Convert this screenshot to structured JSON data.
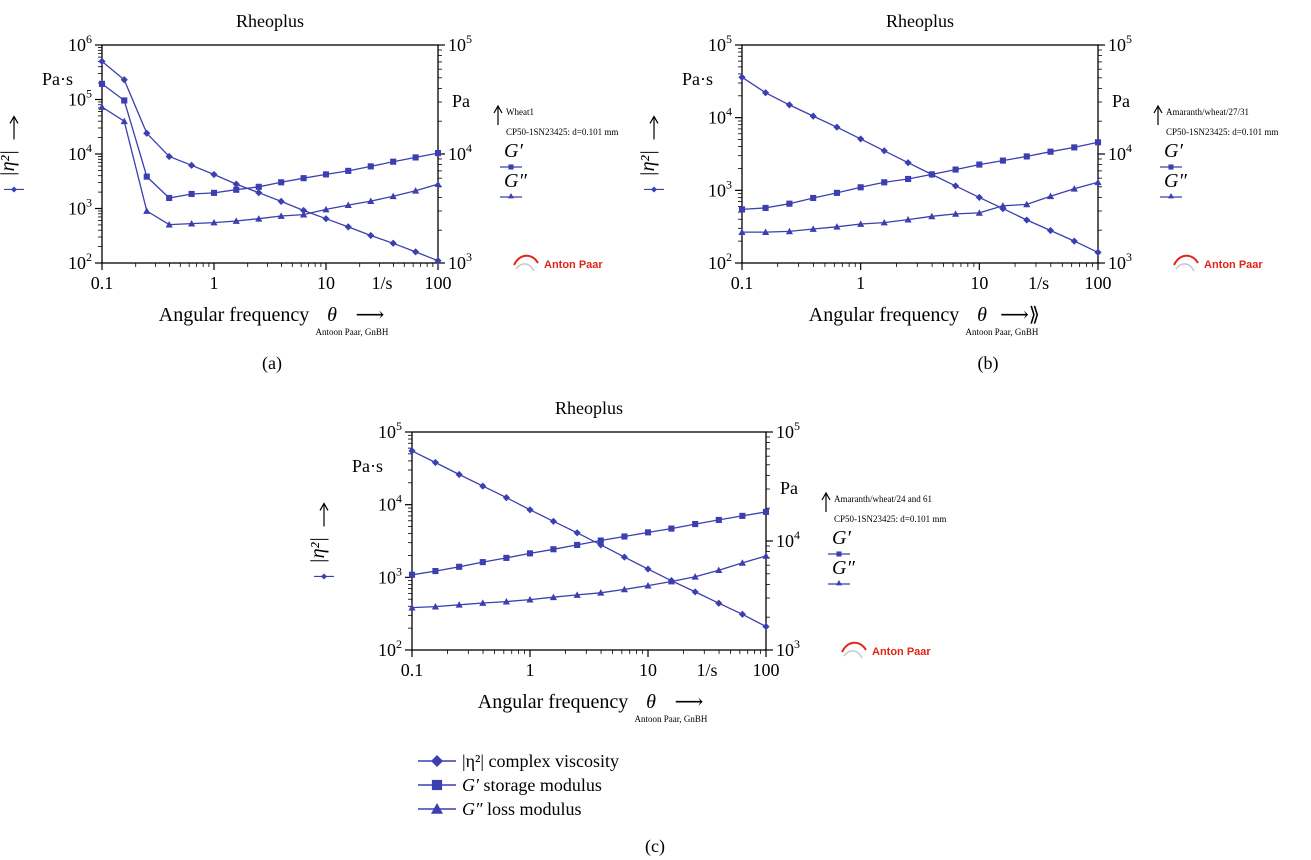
{
  "colors": {
    "series": "#3b3fb0",
    "axis": "#000000",
    "logo": "#e0251b"
  },
  "chart_data": [
    {
      "type": "line",
      "panel_label": "(a)",
      "title": "Rheoplus",
      "xlabel": "Angular frequency",
      "x_symbol": "θ",
      "x_arrow": "⟶",
      "x_note": "Antoon Paar, GnBH",
      "x_scale": "log",
      "xlim": [
        0.1,
        100
      ],
      "x_ticks": [
        "0.1",
        "1",
        "10",
        "1/s",
        "100"
      ],
      "x_tick_values": [
        0.1,
        1,
        10,
        31.6,
        100
      ],
      "y_left": {
        "scale": "log",
        "lim": [
          100,
          1000000
        ],
        "tick_exps": [
          2,
          3,
          4,
          5,
          6
        ],
        "unit": "Pa·s",
        "label": "|η²|"
      },
      "y_right": {
        "scale": "log",
        "lim": [
          1000,
          100000
        ],
        "tick_exps": [
          3,
          4,
          5
        ],
        "unit": "Pa",
        "labels": [
          "G′",
          "G″"
        ]
      },
      "sample_note": "Wheat1",
      "instrument_note": "CP50-1SN23425: d=0.101 mm",
      "logo_text": "Anton Paar",
      "series": [
        {
          "name": "|η²|",
          "marker": "diamond",
          "axis": "left",
          "x": [
            0.1,
            0.158,
            0.251,
            0.398,
            0.631,
            1,
            1.58,
            2.51,
            3.98,
            6.31,
            10,
            15.8,
            25.1,
            39.8,
            63.1,
            100
          ],
          "y": [
            500000,
            230000,
            24000,
            9000,
            6200,
            4200,
            2800,
            1950,
            1350,
            920,
            650,
            460,
            320,
            230,
            160,
            110
          ]
        },
        {
          "name": "G′",
          "marker": "square",
          "axis": "right",
          "x": [
            0.1,
            0.158,
            0.251,
            0.398,
            0.631,
            1,
            1.58,
            2.51,
            3.98,
            6.31,
            10,
            15.8,
            25.1,
            39.8,
            63.1,
            100
          ],
          "y": [
            44000,
            31000,
            6200,
            3950,
            4300,
            4400,
            4700,
            5000,
            5500,
            6000,
            6500,
            7000,
            7700,
            8500,
            9300,
            10200
          ]
        },
        {
          "name": "G″",
          "marker": "triangle",
          "axis": "right",
          "x": [
            0.1,
            0.158,
            0.251,
            0.398,
            0.631,
            1,
            1.58,
            2.51,
            3.98,
            6.31,
            10,
            15.8,
            25.1,
            39.8,
            63.1,
            100
          ],
          "y": [
            27000,
            20000,
            3000,
            2250,
            2300,
            2350,
            2430,
            2550,
            2700,
            2780,
            3100,
            3400,
            3700,
            4100,
            4600,
            5300
          ]
        }
      ]
    },
    {
      "type": "line",
      "panel_label": "(b)",
      "title": "Rheoplus",
      "xlabel": "Angular frequency",
      "x_symbol": "θ",
      "x_arrow": "⟶⟫",
      "x_note": "Antoon Paar, GnBH",
      "x_scale": "log",
      "xlim": [
        0.1,
        100
      ],
      "x_ticks": [
        "0.1",
        "1",
        "10",
        "1/s",
        "100"
      ],
      "x_tick_values": [
        0.1,
        1,
        10,
        31.6,
        100
      ],
      "y_left": {
        "scale": "log",
        "lim": [
          100,
          100000
        ],
        "tick_exps": [
          2,
          3,
          4,
          5
        ],
        "unit": "Pa·s",
        "label": "|η²|"
      },
      "y_right": {
        "scale": "log",
        "lim": [
          1000,
          100000
        ],
        "tick_exps": [
          3,
          4,
          5
        ],
        "unit": "Pa",
        "labels": [
          "G′",
          "G″"
        ]
      },
      "sample_note": "Amaranth/wheat/27/31",
      "instrument_note": "CP50-1SN23425: d=0.101 mm",
      "logo_text": "Anton Paar",
      "series": [
        {
          "name": "|η²|",
          "marker": "diamond",
          "axis": "left",
          "x": [
            0.1,
            0.158,
            0.251,
            0.398,
            0.631,
            1,
            1.58,
            2.51,
            3.98,
            6.31,
            10,
            15.8,
            25.1,
            39.8,
            63.1,
            100
          ],
          "y": [
            36000,
            22000,
            15000,
            10500,
            7400,
            5100,
            3500,
            2400,
            1650,
            1150,
            800,
            560,
            390,
            280,
            200,
            140
          ]
        },
        {
          "name": "G′",
          "marker": "square",
          "axis": "right",
          "x": [
            0.1,
            0.158,
            0.251,
            0.398,
            0.631,
            1,
            1.58,
            2.51,
            3.98,
            6.31,
            10,
            15.8,
            25.1,
            39.8,
            63.1,
            100
          ],
          "y": [
            3100,
            3200,
            3500,
            3950,
            4400,
            4950,
            5500,
            5900,
            6500,
            7200,
            8000,
            8700,
            9500,
            10500,
            11500,
            12800
          ]
        },
        {
          "name": "G″",
          "marker": "triangle",
          "axis": "right",
          "x": [
            0.1,
            0.158,
            0.251,
            0.398,
            0.631,
            1,
            1.58,
            2.51,
            3.98,
            6.31,
            10,
            15.8,
            25.1,
            39.8,
            63.1,
            100
          ],
          "y": [
            1920,
            1920,
            1950,
            2050,
            2150,
            2280,
            2350,
            2500,
            2680,
            2820,
            2880,
            3350,
            3450,
            4100,
            4800,
            5500
          ]
        }
      ]
    },
    {
      "type": "line",
      "panel_label": "(c)",
      "title": "Rheoplus",
      "xlabel": "Angular frequency",
      "x_symbol": "θ",
      "x_arrow": "⟶",
      "x_note": "Antoon Paar, GnBH",
      "x_scale": "log",
      "xlim": [
        0.1,
        100
      ],
      "x_ticks": [
        "0.1",
        "1",
        "10",
        "1/s",
        "100"
      ],
      "x_tick_values": [
        0.1,
        1,
        10,
        31.6,
        100
      ],
      "y_left": {
        "scale": "log",
        "lim": [
          100,
          100000
        ],
        "tick_exps": [
          2,
          3,
          4,
          5
        ],
        "unit": "Pa·s",
        "label": "|η²|"
      },
      "y_right": {
        "scale": "log",
        "lim": [
          1000,
          100000
        ],
        "tick_exps": [
          3,
          4,
          5
        ],
        "unit": "Pa",
        "labels": [
          "G′",
          "G″"
        ]
      },
      "sample_note": "Amaranth/wheat/24 and 61",
      "instrument_note": "CP50-1SN23425: d=0.101 mm",
      "logo_text": "Anton Paar",
      "series": [
        {
          "name": "|η²|",
          "marker": "diamond",
          "axis": "left",
          "x": [
            0.1,
            0.158,
            0.251,
            0.398,
            0.631,
            1,
            1.58,
            2.51,
            3.98,
            6.31,
            10,
            15.8,
            25.1,
            39.8,
            63.1,
            100
          ],
          "y": [
            55000,
            38000,
            26000,
            18000,
            12500,
            8500,
            5900,
            4100,
            2800,
            1900,
            1300,
            900,
            630,
            440,
            310,
            210
          ]
        },
        {
          "name": "G′",
          "marker": "square",
          "axis": "right",
          "x": [
            0.1,
            0.158,
            0.251,
            0.398,
            0.631,
            1,
            1.58,
            2.51,
            3.98,
            6.31,
            10,
            15.8,
            25.1,
            39.8,
            63.1,
            100
          ],
          "y": [
            4900,
            5300,
            5800,
            6400,
            7000,
            7700,
            8400,
            9200,
            10100,
            11000,
            12000,
            13000,
            14300,
            15600,
            17000,
            18500
          ]
        },
        {
          "name": "G″",
          "marker": "triangle",
          "axis": "right",
          "x": [
            0.1,
            0.158,
            0.251,
            0.398,
            0.631,
            1,
            1.58,
            2.51,
            3.98,
            6.31,
            10,
            15.8,
            25.1,
            39.8,
            63.1,
            100
          ],
          "y": [
            2450,
            2500,
            2600,
            2700,
            2780,
            2900,
            3050,
            3200,
            3350,
            3600,
            3900,
            4250,
            4700,
            5400,
            6300,
            7300
          ]
        }
      ]
    }
  ],
  "legend": [
    {
      "marker": "diamond",
      "symbol": "|η²|",
      "text": "complex viscosity"
    },
    {
      "marker": "square",
      "symbol": "G′",
      "text": "storage modulus"
    },
    {
      "marker": "triangle",
      "symbol": "G″",
      "text": "loss modulus"
    }
  ]
}
